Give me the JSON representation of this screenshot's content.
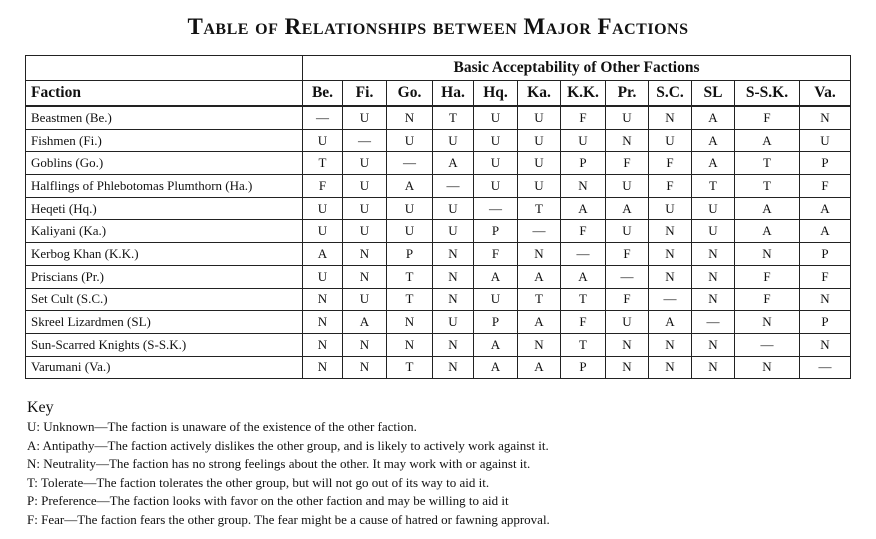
{
  "title": "Table of Relationships between Major Factions",
  "group_header": "Basic Acceptability of Other Factions",
  "faction_header": "Faction",
  "columns": [
    "Be.",
    "Fi.",
    "Go.",
    "Ha.",
    "Hq.",
    "Ka.",
    "K.K.",
    "Pr.",
    "S.C.",
    "SL",
    "S-S.K.",
    "Va."
  ],
  "rows": [
    {
      "name": "Beastmen (Be.)",
      "cells": [
        "—",
        "U",
        "N",
        "T",
        "U",
        "U",
        "F",
        "U",
        "N",
        "A",
        "F",
        "N"
      ]
    },
    {
      "name": "Fishmen (Fi.)",
      "cells": [
        "U",
        "—",
        "U",
        "U",
        "U",
        "U",
        "U",
        "N",
        "U",
        "A",
        "A",
        "U"
      ]
    },
    {
      "name": "Goblins (Go.)",
      "cells": [
        "T",
        "U",
        "—",
        "A",
        "U",
        "U",
        "P",
        "F",
        "F",
        "A",
        "T",
        "P"
      ]
    },
    {
      "name": "Halflings of Phlebotomas Plumthorn (Ha.)",
      "cells": [
        "F",
        "U",
        "A",
        "—",
        "U",
        "U",
        "N",
        "U",
        "F",
        "T",
        "T",
        "F"
      ]
    },
    {
      "name": "Heqeti (Hq.)",
      "cells": [
        "U",
        "U",
        "U",
        "U",
        "—",
        "T",
        "A",
        "A",
        "U",
        "U",
        "A",
        "A"
      ]
    },
    {
      "name": "Kaliyani (Ka.)",
      "cells": [
        "U",
        "U",
        "U",
        "U",
        "P",
        "—",
        "F",
        "U",
        "N",
        "U",
        "A",
        "A"
      ]
    },
    {
      "name": "Kerbog Khan (K.K.)",
      "cells": [
        "A",
        "N",
        "P",
        "N",
        "F",
        "N",
        "—",
        "F",
        "N",
        "N",
        "N",
        "P"
      ]
    },
    {
      "name": "Priscians (Pr.)",
      "cells": [
        "U",
        "N",
        "T",
        "N",
        "A",
        "A",
        "A",
        "—",
        "N",
        "N",
        "F",
        "F"
      ]
    },
    {
      "name": "Set Cult (S.C.)",
      "cells": [
        "N",
        "U",
        "T",
        "N",
        "U",
        "T",
        "T",
        "F",
        "—",
        "N",
        "F",
        "N"
      ]
    },
    {
      "name": "Skreel Lizardmen (SL)",
      "cells": [
        "N",
        "A",
        "N",
        "U",
        "P",
        "A",
        "F",
        "U",
        "A",
        "—",
        "N",
        "P"
      ]
    },
    {
      "name": "Sun-Scarred Knights (S-S.K.)",
      "cells": [
        "N",
        "N",
        "N",
        "N",
        "A",
        "N",
        "T",
        "N",
        "N",
        "N",
        "—",
        "N"
      ]
    },
    {
      "name": "Varumani (Va.)",
      "cells": [
        "N",
        "N",
        "T",
        "N",
        "A",
        "A",
        "P",
        "N",
        "N",
        "N",
        "N",
        "—"
      ]
    }
  ],
  "key": {
    "title": "Key",
    "items": [
      "U: Unknown—The faction is unaware of the existence of the other faction.",
      "A: Antipathy—The faction actively dislikes the other group, and is likely to actively work against it.",
      "N: Neutrality—The faction has no strong feelings about the other. It may work with or against it.",
      "T: Tolerate—The faction tolerates the other group, but will not go out of its way to aid it.",
      "P: Preference—The faction looks with favor on the other faction and may be willing to aid it",
      "F: Fear—The faction fears the other group. The fear might be a cause of hatred or fawning approval."
    ]
  }
}
